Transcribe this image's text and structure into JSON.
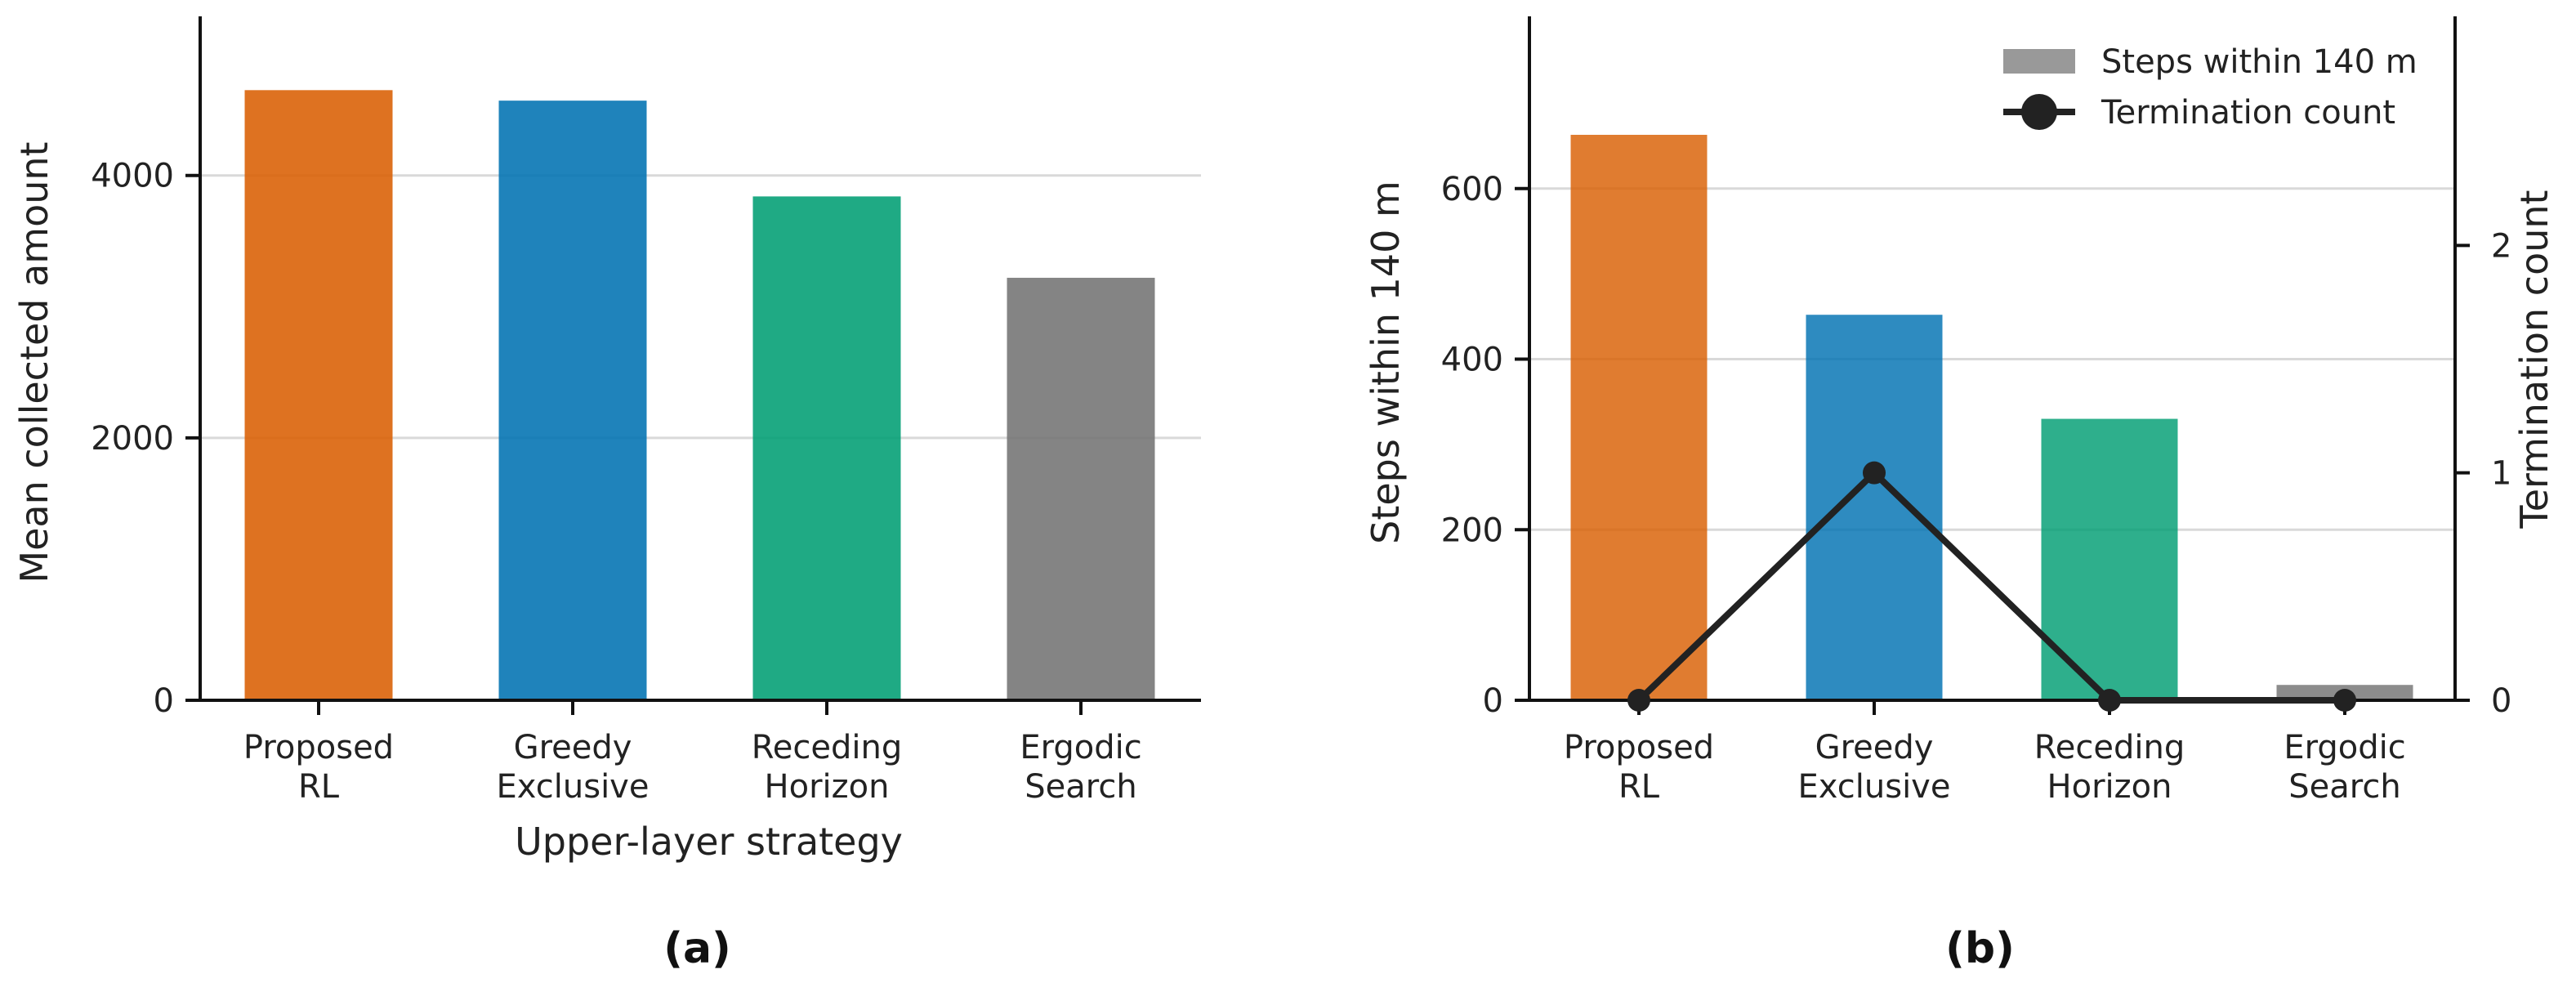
{
  "chart_data": [
    {
      "id": "a",
      "type": "bar",
      "panel_label": "(a)",
      "categories": [
        [
          "Proposed",
          "RL"
        ],
        [
          "Greedy",
          "Exclusive"
        ],
        [
          "Receding",
          "Horizon"
        ],
        [
          "Ergodic",
          "Search"
        ]
      ],
      "values": [
        4650,
        4570,
        3840,
        3220
      ],
      "colors": [
        "#d95f02",
        "#0072b2",
        "#009e73",
        "#737373"
      ],
      "xlabel": "Upper-layer strategy",
      "ylabel": "Mean collected amount",
      "ylim": [
        0,
        5200
      ],
      "yticks": [
        0,
        2000,
        4000
      ],
      "grid": "horizontal"
    },
    {
      "id": "b",
      "type": "bar",
      "panel_label": "(b)",
      "categories": [
        [
          "Proposed",
          "RL"
        ],
        [
          "Greedy",
          "Exclusive"
        ],
        [
          "Receding",
          "Horizon"
        ],
        [
          "Ergodic",
          "Search"
        ]
      ],
      "series": [
        {
          "name": "Steps within 140 m",
          "type": "bar",
          "axis": "left",
          "values": [
            663,
            452,
            330,
            18
          ],
          "legend_color": "#999999"
        },
        {
          "name": "Termination count",
          "type": "line",
          "axis": "right",
          "values": [
            0,
            1,
            0,
            0
          ],
          "color": "#222222"
        }
      ],
      "colors": [
        "#d95f02",
        "#0072b2",
        "#009e73",
        "#737373"
      ],
      "ylabel": "Steps within 140 m",
      "ylim": [
        0,
        800
      ],
      "yticks": [
        0,
        200,
        400,
        600
      ],
      "y2label": "Termination count",
      "y2lim": [
        0,
        3
      ],
      "y2ticks": [
        0,
        1,
        2
      ],
      "legend": "top-right",
      "grid": "horizontal"
    }
  ]
}
